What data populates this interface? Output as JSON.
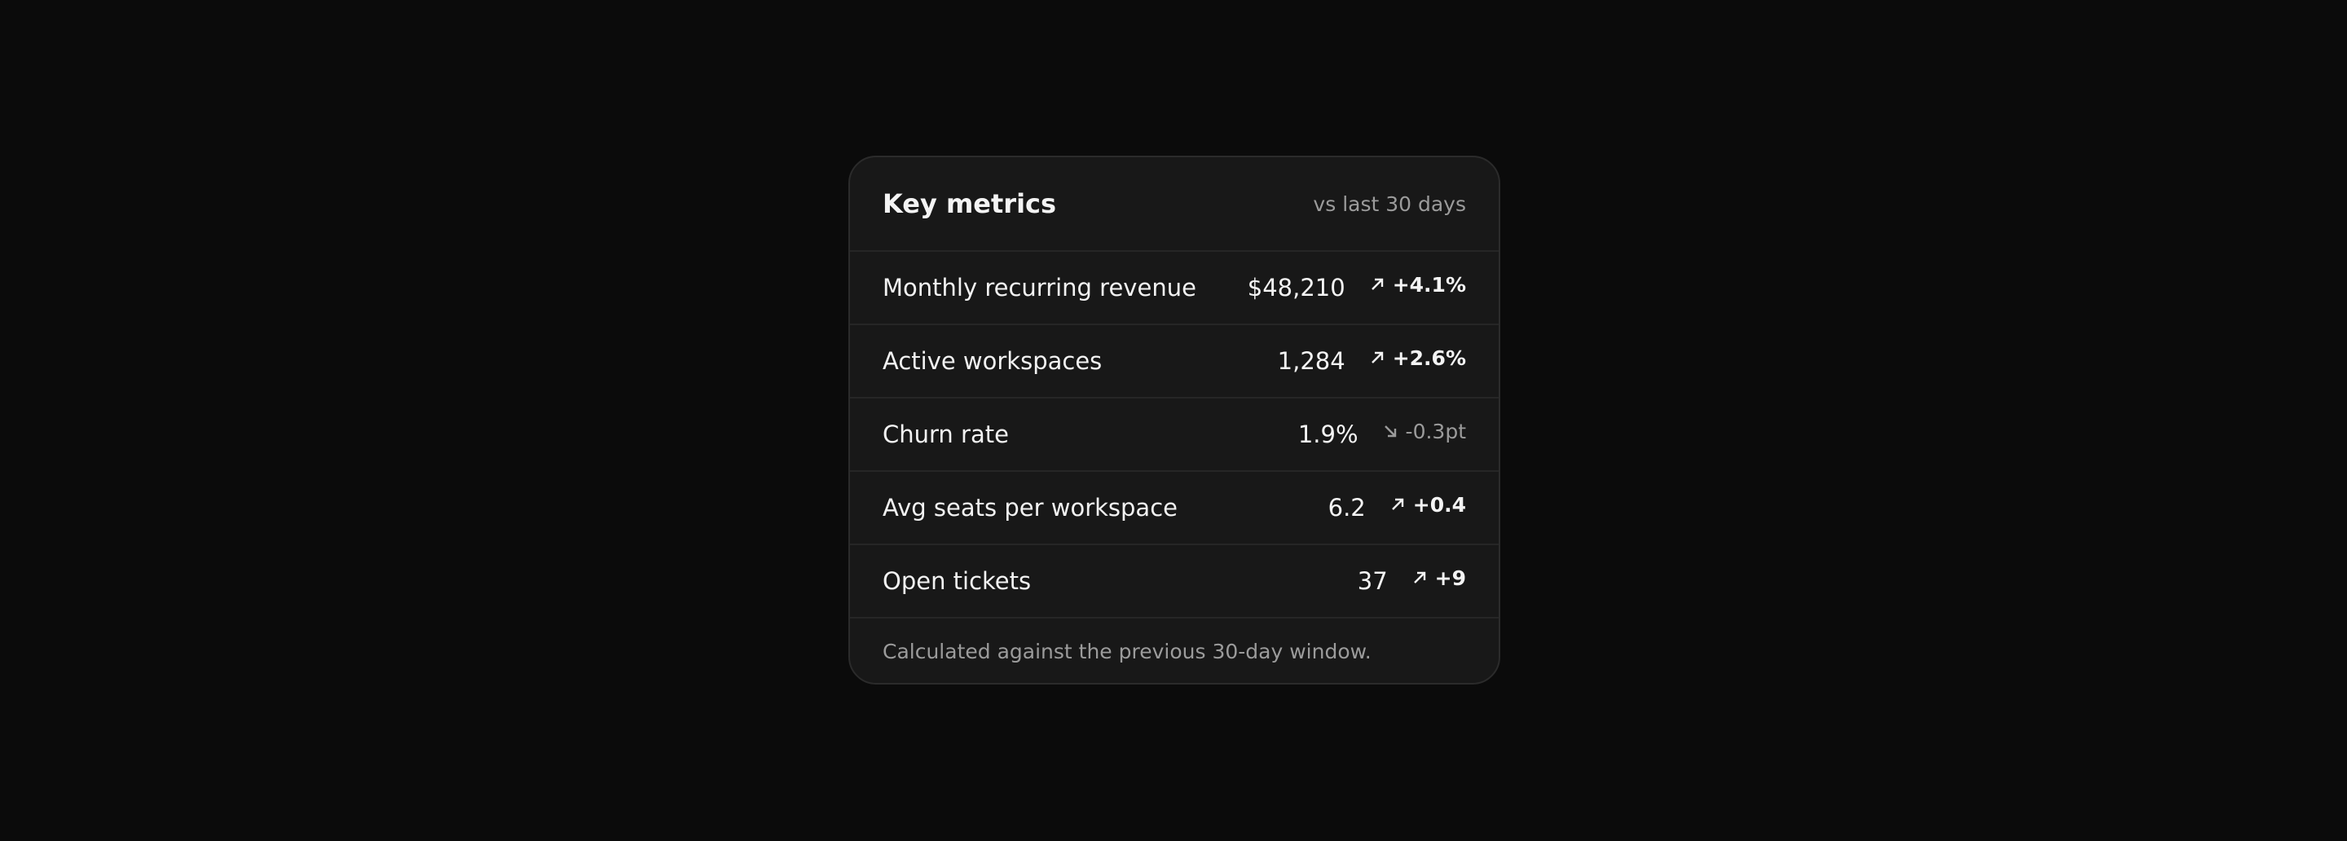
{
  "header": {
    "title": "Key metrics",
    "subtitle": "vs last 30 days"
  },
  "rows": [
    {
      "label": "Monthly recurring revenue",
      "value": "$48,210",
      "delta": "+4.1%"
    },
    {
      "label": "Active workspaces",
      "value": "1,284",
      "delta": "+2.6%"
    },
    {
      "label": "Churn rate",
      "value": "1.9%",
      "delta": "-0.3pt"
    },
    {
      "label": "Avg seats per workspace",
      "value": "6.2",
      "delta": "+0.4"
    },
    {
      "label": "Open tickets",
      "value": "37",
      "delta": "+9"
    }
  ],
  "footer": "Calculated against the previous 30-day window."
}
